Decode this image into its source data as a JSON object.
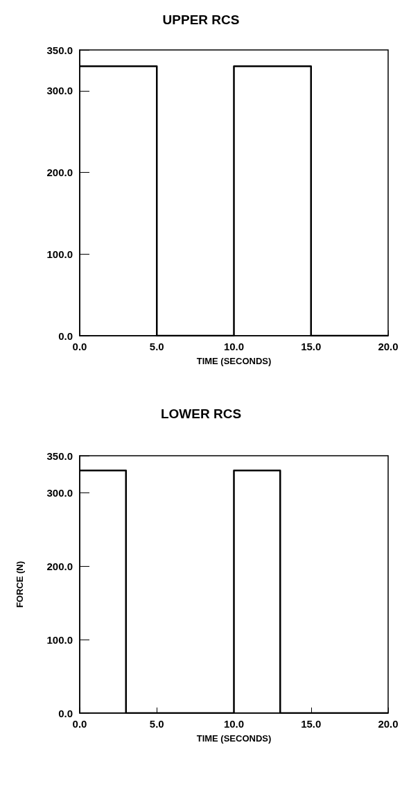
{
  "chart_data": [
    {
      "type": "step",
      "title": "UPPER RCS",
      "xlabel": "TIME (SECONDS)",
      "series": [
        {
          "color": "#000000",
          "x": [
            0,
            5,
            10,
            15,
            20
          ],
          "values": [
            330,
            0,
            330,
            0,
            0
          ]
        }
      ],
      "xlim": [
        0,
        20
      ],
      "xticks": [
        {
          "value": 0,
          "label": "0.0"
        },
        {
          "value": 5,
          "label": "5.0"
        },
        {
          "value": 10,
          "label": "10.0"
        },
        {
          "value": 15,
          "label": "15.0"
        },
        {
          "value": 20,
          "label": "20.0"
        }
      ],
      "ylim": [
        0,
        350
      ],
      "yticks": [
        {
          "value": 0,
          "label": "0.0"
        },
        {
          "value": 100,
          "label": "100.0"
        },
        {
          "value": 200,
          "label": "200.0"
        },
        {
          "value": 300,
          "label": "300.0"
        },
        {
          "value": 350,
          "label": "350.0"
        }
      ],
      "grid": false,
      "marker": "none",
      "line_style": "solid"
    },
    {
      "type": "step",
      "title": "LOWER RCS",
      "xlabel": "TIME (SECONDS)",
      "ylabel": "FORCE (N)",
      "series": [
        {
          "color": "#000000",
          "x": [
            0,
            3,
            10,
            13,
            20
          ],
          "values": [
            330,
            0,
            330,
            0,
            0
          ]
        }
      ],
      "xlim": [
        0,
        20
      ],
      "xticks": [
        {
          "value": 0,
          "label": "0.0"
        },
        {
          "value": 5,
          "label": "5.0"
        },
        {
          "value": 10,
          "label": "10.0"
        },
        {
          "value": 15,
          "label": "15.0"
        },
        {
          "value": 20,
          "label": "20.0"
        }
      ],
      "ylim": [
        0,
        350
      ],
      "yticks": [
        {
          "value": 0,
          "label": "0.0"
        },
        {
          "value": 100,
          "label": "100.0"
        },
        {
          "value": 200,
          "label": "200.0"
        },
        {
          "value": 300,
          "label": "300.0"
        },
        {
          "value": 350,
          "label": "350.0"
        }
      ],
      "grid": false,
      "marker": "none",
      "line_style": "solid"
    }
  ]
}
